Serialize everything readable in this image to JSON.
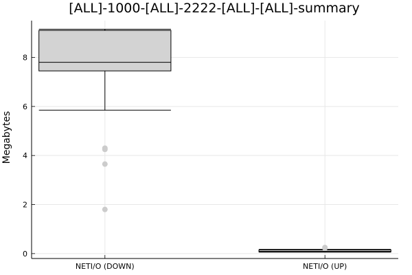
{
  "chart_data": {
    "type": "box",
    "title": "[ALL]-1000-[ALL]-2222-[ALL]-[ALL]-summary",
    "xlabel": "",
    "ylabel": "Megabytes",
    "ylim": [
      -0.2,
      9.5
    ],
    "yticks": [
      0,
      2,
      4,
      6,
      8
    ],
    "grid": true,
    "legend": "none",
    "colors": {
      "box_fill": "#d3d3d3",
      "outlier": "#cccccc",
      "grid": "#e8e8e8",
      "line": "#000000"
    },
    "categories": [
      "NETI/O (DOWN)",
      "NETI/O (UP)"
    ],
    "boxes": [
      {
        "category": "NETI/O (DOWN)",
        "min": 5.85,
        "q1": 7.45,
        "median": 7.8,
        "q3": 9.1,
        "max": 9.15,
        "outliers": [
          4.3,
          4.25,
          3.65,
          1.8
        ]
      },
      {
        "category": "NETI/O (UP)",
        "min": 0.06,
        "q1": 0.07,
        "median": 0.09,
        "q3": 0.15,
        "max": 0.17,
        "outliers": [
          0.22,
          0.25
        ]
      }
    ]
  }
}
